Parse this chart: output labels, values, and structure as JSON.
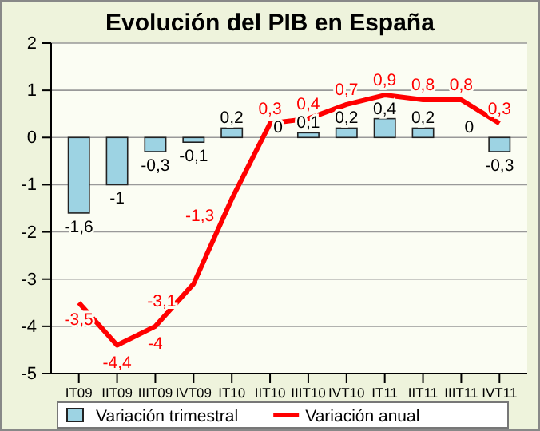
{
  "chart_data": {
    "type": "bar",
    "title": "Evolución del PIB en España",
    "categories": [
      "IT09",
      "IIT09",
      "IIIT09",
      "IVT09",
      "IT10",
      "IIT10",
      "IIIT10",
      "IVT10",
      "IT11",
      "IIT11",
      "IIIT11",
      "IVT11"
    ],
    "series": [
      {
        "name": "Variación trimestral",
        "color": "#9dd3e3",
        "values": [
          -1.6,
          -1,
          -0.3,
          -0.1,
          0.2,
          0,
          0.1,
          0.2,
          0.4,
          0.2,
          0,
          -0.3
        ],
        "value_labels": [
          "-1,6",
          "-1",
          "-0,3",
          "-0,1",
          "0,2",
          "0",
          "0,1",
          "0,2",
          "0,4",
          "0,2",
          "0",
          "-0,3"
        ]
      },
      {
        "name": "Variación anual",
        "type": "line",
        "color": "#ff0000",
        "values": [
          -3.5,
          -4.4,
          -4,
          -3.1,
          -1.3,
          0.3,
          0.4,
          0.7,
          0.9,
          0.8,
          0.8,
          0.3
        ],
        "value_labels": [
          "-3,5",
          "-4,4",
          "-4",
          "-3,1",
          "-1,3",
          "0,3",
          "0,4",
          "0,7",
          "0,9",
          "0,8",
          "0,8",
          "0,3"
        ]
      }
    ],
    "ylim": [
      -5,
      2
    ],
    "yticks": [
      -5,
      -4,
      -3,
      -2,
      -1,
      0,
      1,
      2
    ],
    "grid": "y",
    "legend": "bottom",
    "marker": "none",
    "line_style": "solid"
  }
}
